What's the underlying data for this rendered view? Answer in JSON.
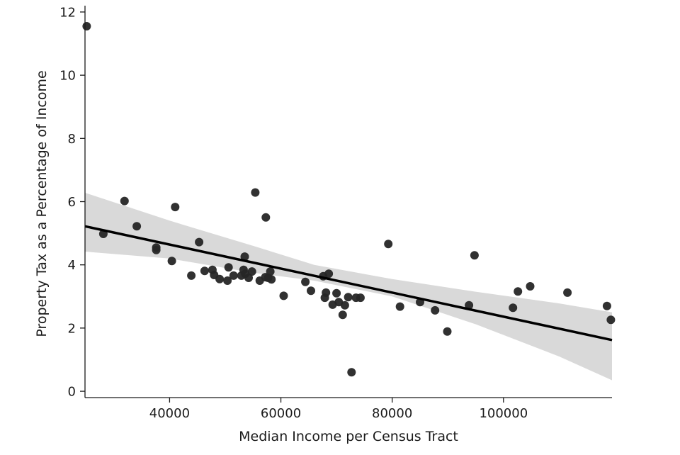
{
  "chart_data": {
    "type": "scatter",
    "title": "",
    "xlabel": "Median Income per Census Tract",
    "ylabel": "Property Tax as a Percentage of Income",
    "xlim": [
      24800,
      119500
    ],
    "ylim": [
      -0.2,
      12.2
    ],
    "xticks": [
      40000,
      60000,
      80000,
      100000
    ],
    "xtick_labels": [
      "40000",
      "60000",
      "80000",
      "100000"
    ],
    "yticks": [
      0,
      2,
      4,
      6,
      8,
      10,
      12
    ],
    "ytick_labels": [
      "0",
      "2",
      "4",
      "6",
      "8",
      "10",
      "12"
    ],
    "grid": false,
    "spines": [
      "left",
      "bottom"
    ],
    "colors": {
      "points": "#262626",
      "line": "#000000",
      "band": "#d9d9d9"
    },
    "points": [
      {
        "x": 25100,
        "y": 11.55
      },
      {
        "x": 28100,
        "y": 4.98
      },
      {
        "x": 31900,
        "y": 6.02
      },
      {
        "x": 34100,
        "y": 5.22
      },
      {
        "x": 37600,
        "y": 4.55
      },
      {
        "x": 37600,
        "y": 4.47
      },
      {
        "x": 40400,
        "y": 4.12
      },
      {
        "x": 41000,
        "y": 5.83
      },
      {
        "x": 43900,
        "y": 3.66
      },
      {
        "x": 45300,
        "y": 4.72
      },
      {
        "x": 46300,
        "y": 3.81
      },
      {
        "x": 47700,
        "y": 3.84
      },
      {
        "x": 48000,
        "y": 3.68
      },
      {
        "x": 49000,
        "y": 3.55
      },
      {
        "x": 50400,
        "y": 3.5
      },
      {
        "x": 50600,
        "y": 3.92
      },
      {
        "x": 51500,
        "y": 3.66
      },
      {
        "x": 52900,
        "y": 3.66
      },
      {
        "x": 53300,
        "y": 3.84
      },
      {
        "x": 53500,
        "y": 4.26
      },
      {
        "x": 53600,
        "y": 3.72
      },
      {
        "x": 54200,
        "y": 3.59
      },
      {
        "x": 54800,
        "y": 3.79
      },
      {
        "x": 55400,
        "y": 6.29
      },
      {
        "x": 56200,
        "y": 3.5
      },
      {
        "x": 57200,
        "y": 3.61
      },
      {
        "x": 57300,
        "y": 5.5
      },
      {
        "x": 57700,
        "y": 3.59
      },
      {
        "x": 58100,
        "y": 3.79
      },
      {
        "x": 58300,
        "y": 3.54
      },
      {
        "x": 60500,
        "y": 3.02
      },
      {
        "x": 64400,
        "y": 3.46
      },
      {
        "x": 65400,
        "y": 3.18
      },
      {
        "x": 67600,
        "y": 3.64
      },
      {
        "x": 67900,
        "y": 2.96
      },
      {
        "x": 68100,
        "y": 3.12
      },
      {
        "x": 68600,
        "y": 3.72
      },
      {
        "x": 69300,
        "y": 2.74
      },
      {
        "x": 70000,
        "y": 3.1
      },
      {
        "x": 70400,
        "y": 2.82
      },
      {
        "x": 71100,
        "y": 2.42
      },
      {
        "x": 71500,
        "y": 2.72
      },
      {
        "x": 72100,
        "y": 2.98
      },
      {
        "x": 72700,
        "y": 0.6
      },
      {
        "x": 73500,
        "y": 2.96
      },
      {
        "x": 74300,
        "y": 2.96
      },
      {
        "x": 79300,
        "y": 4.66
      },
      {
        "x": 81400,
        "y": 2.68
      },
      {
        "x": 85000,
        "y": 2.82
      },
      {
        "x": 87700,
        "y": 2.56
      },
      {
        "x": 89900,
        "y": 1.89
      },
      {
        "x": 93800,
        "y": 2.72
      },
      {
        "x": 94800,
        "y": 4.3
      },
      {
        "x": 101700,
        "y": 2.64
      },
      {
        "x": 102600,
        "y": 3.16
      },
      {
        "x": 104800,
        "y": 3.32
      },
      {
        "x": 111500,
        "y": 3.12
      },
      {
        "x": 118600,
        "y": 2.7
      },
      {
        "x": 119300,
        "y": 2.26
      }
    ],
    "regression": {
      "x": [
        24800,
        119500
      ],
      "y": [
        5.22,
        1.62
      ]
    },
    "confidence_band": {
      "x": [
        24800,
        40000,
        55000,
        66000,
        80000,
        95000,
        110000,
        119500
      ],
      "upper": [
        6.28,
        5.4,
        4.6,
        4.0,
        3.55,
        3.15,
        2.78,
        2.5
      ],
      "lower": [
        4.42,
        4.2,
        3.75,
        3.5,
        3.0,
        2.12,
        1.1,
        0.35
      ]
    }
  }
}
